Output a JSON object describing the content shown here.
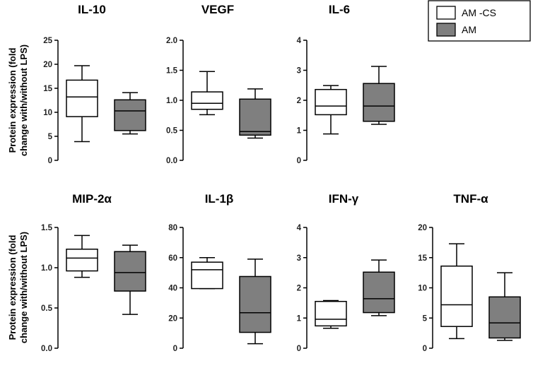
{
  "chart_data": {
    "type": "boxplot",
    "figure_ylabel_lines": [
      "Protein expression (fold",
      "change with/without LPS)"
    ],
    "legend": [
      {
        "label": "AM -CS",
        "color": "#ffffff"
      },
      {
        "label": "AM",
        "color": "#7f7f7f"
      }
    ],
    "groups": [
      "AM -CS",
      "AM"
    ],
    "panels": [
      {
        "title": "IL-10",
        "ylim": [
          0,
          25
        ],
        "ticks": [
          0,
          5,
          10,
          15,
          20,
          25
        ],
        "tick_labels": [
          "0",
          "5",
          "10",
          "15",
          "20",
          "25"
        ],
        "boxes": [
          {
            "group": "AM -CS",
            "min": 3.9,
            "q1": 9.1,
            "median": 13.2,
            "q3": 16.7,
            "max": 19.7
          },
          {
            "group": "AM",
            "min": 5.5,
            "q1": 6.2,
            "median": 10.3,
            "q3": 12.6,
            "max": 14.1
          }
        ]
      },
      {
        "title": "VEGF",
        "ylim": [
          0,
          2.0
        ],
        "ticks": [
          0,
          0.5,
          1.0,
          1.5,
          2.0
        ],
        "tick_labels": [
          "0.0",
          "0.5",
          "1.0",
          "1.5",
          "2.0"
        ],
        "boxes": [
          {
            "group": "AM -CS",
            "min": 0.76,
            "q1": 0.85,
            "median": 0.95,
            "q3": 1.14,
            "max": 1.48
          },
          {
            "group": "AM",
            "min": 0.37,
            "q1": 0.42,
            "median": 0.48,
            "q3": 1.02,
            "max": 1.19
          }
        ]
      },
      {
        "title": "IL-6",
        "ylim": [
          0,
          4
        ],
        "ticks": [
          0,
          1,
          2,
          3,
          4
        ],
        "tick_labels": [
          "0",
          "1",
          "2",
          "3",
          "4"
        ],
        "boxes": [
          {
            "group": "AM -CS",
            "min": 0.88,
            "q1": 1.52,
            "median": 1.81,
            "q3": 2.36,
            "max": 2.49
          },
          {
            "group": "AM",
            "min": 1.2,
            "q1": 1.3,
            "median": 1.81,
            "q3": 2.56,
            "max": 3.13
          }
        ]
      },
      {
        "title": "MIP-2α",
        "ylim": [
          0,
          1.5
        ],
        "ticks": [
          0,
          0.5,
          1.0,
          1.5
        ],
        "tick_labels": [
          "0.0",
          "0.5",
          "1.0",
          "1.5"
        ],
        "boxes": [
          {
            "group": "AM -CS",
            "min": 0.88,
            "q1": 0.96,
            "median": 1.12,
            "q3": 1.23,
            "max": 1.4
          },
          {
            "group": "AM",
            "min": 0.42,
            "q1": 0.71,
            "median": 0.94,
            "q3": 1.2,
            "max": 1.28
          }
        ]
      },
      {
        "title": "IL-1β",
        "ylim": [
          0,
          80
        ],
        "ticks": [
          0,
          20,
          40,
          60,
          80
        ],
        "tick_labels": [
          "0",
          "20",
          "40",
          "60",
          "80"
        ],
        "boxes": [
          {
            "group": "AM -CS",
            "min": 39.5,
            "q1": 39.5,
            "median": 52,
            "q3": 57,
            "max": 60
          },
          {
            "group": "AM",
            "min": 3,
            "q1": 10.5,
            "median": 23.5,
            "q3": 47.5,
            "max": 59
          }
        ]
      },
      {
        "title": "IFN-γ",
        "ylim": [
          0,
          4
        ],
        "ticks": [
          0,
          1,
          2,
          3,
          4
        ],
        "tick_labels": [
          "0",
          "1",
          "2",
          "3",
          "4"
        ],
        "boxes": [
          {
            "group": "AM -CS",
            "min": 0.66,
            "q1": 0.74,
            "median": 0.96,
            "q3": 1.55,
            "max": 1.58
          },
          {
            "group": "AM",
            "min": 1.08,
            "q1": 1.18,
            "median": 1.64,
            "q3": 2.52,
            "max": 2.92
          }
        ]
      },
      {
        "title": "TNF-α",
        "ylim": [
          0,
          20
        ],
        "ticks": [
          0,
          5,
          10,
          15,
          20
        ],
        "tick_labels": [
          "0",
          "5",
          "10",
          "15",
          "20"
        ],
        "boxes": [
          {
            "group": "AM -CS",
            "min": 1.6,
            "q1": 3.6,
            "median": 7.2,
            "q3": 13.6,
            "max": 17.3
          },
          {
            "group": "AM",
            "min": 1.3,
            "q1": 1.7,
            "median": 4.2,
            "q3": 8.5,
            "max": 12.5
          }
        ]
      }
    ]
  }
}
